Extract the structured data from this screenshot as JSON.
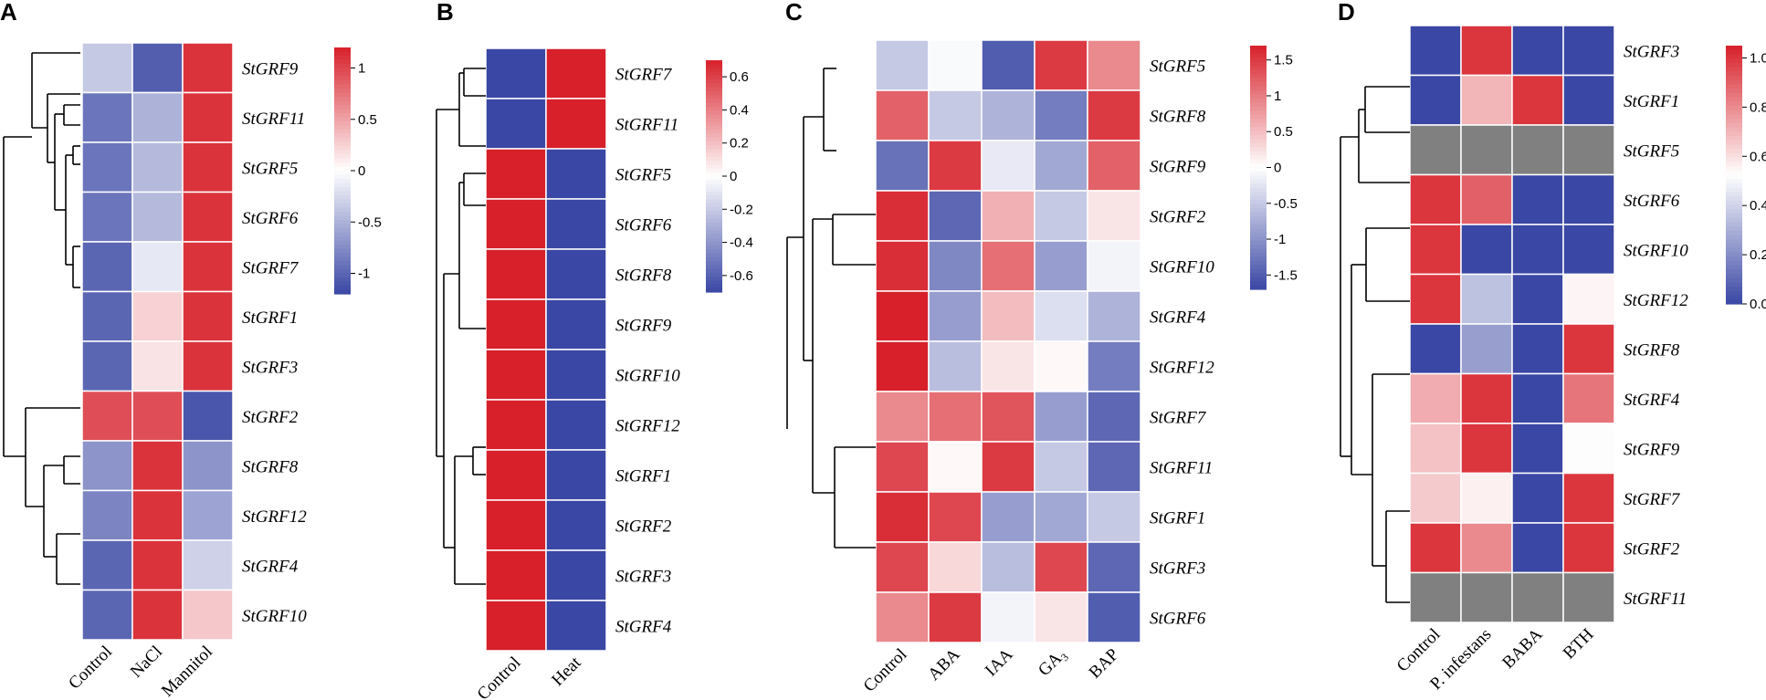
{
  "colors": {
    "low": "#3a47a4",
    "mid": "#ffffff",
    "high": "#d7202a",
    "missing": "#808080"
  },
  "chart_data": [
    {
      "type": "heatmap",
      "panel": "A",
      "title": "A",
      "columns": [
        "Control",
        "NaCl",
        "Mannitol"
      ],
      "rows": [
        "StGRF9",
        "StGRF11",
        "StGRF5",
        "StGRF6",
        "StGRF7",
        "StGRF1",
        "StGRF3",
        "StGRF2",
        "StGRF8",
        "StGRF12",
        "StGRF4",
        "StGRF10"
      ],
      "values": [
        [
          -0.35,
          -1.05,
          1.1
        ],
        [
          -0.9,
          -0.5,
          1.1
        ],
        [
          -0.9,
          -0.45,
          1.1
        ],
        [
          -0.9,
          -0.45,
          1.1
        ],
        [
          -1.0,
          -0.15,
          1.1
        ],
        [
          -1.0,
          0.25,
          1.1
        ],
        [
          -1.0,
          0.15,
          1.1
        ],
        [
          0.95,
          0.95,
          -1.1
        ],
        [
          -0.7,
          1.1,
          -0.7
        ],
        [
          -0.8,
          1.1,
          -0.6
        ],
        [
          -1.0,
          1.1,
          -0.3
        ],
        [
          -1.0,
          1.1,
          0.3
        ]
      ],
      "scale": {
        "min": -1.2,
        "max": 1.2
      },
      "colorbar_ticks": [
        "1",
        "0.5",
        "0",
        "-0.5",
        "-1"
      ],
      "colorbar_tick_values": [
        1,
        0.5,
        0,
        -0.5,
        -1
      ]
    },
    {
      "type": "heatmap",
      "panel": "B",
      "title": "B",
      "columns": [
        "Control",
        "Heat"
      ],
      "rows": [
        "StGRF7",
        "StGRF11",
        "StGRF5",
        "StGRF6",
        "StGRF8",
        "StGRF9",
        "StGRF10",
        "StGRF12",
        "StGRF1",
        "StGRF2",
        "StGRF3",
        "StGRF4"
      ],
      "values": [
        [
          -0.7,
          0.7
        ],
        [
          -0.7,
          0.7
        ],
        [
          0.7,
          -0.7
        ],
        [
          0.7,
          -0.7
        ],
        [
          0.7,
          -0.7
        ],
        [
          0.7,
          -0.7
        ],
        [
          0.7,
          -0.7
        ],
        [
          0.7,
          -0.7
        ],
        [
          0.7,
          -0.7
        ],
        [
          0.7,
          -0.7
        ],
        [
          0.7,
          -0.7
        ],
        [
          0.7,
          -0.7
        ]
      ],
      "scale": {
        "min": -0.7,
        "max": 0.7
      },
      "colorbar_ticks": [
        "0.6",
        "0.4",
        "0.2",
        "0",
        "-0.2",
        "-0.4",
        "-0.6"
      ],
      "colorbar_tick_values": [
        0.6,
        0.4,
        0.2,
        0,
        -0.2,
        -0.4,
        -0.6
      ]
    },
    {
      "type": "heatmap",
      "panel": "C",
      "title": "C",
      "columns": [
        "Control",
        "ABA",
        "IAA",
        "GA3",
        "BAP"
      ],
      "column_subscripts": [
        "",
        "",
        "",
        "3",
        ""
      ],
      "column_base": [
        "Control",
        "ABA",
        "IAA",
        "GA",
        "BAP"
      ],
      "rows": [
        "StGRF5",
        "StGRF8",
        "StGRF9",
        "StGRF2",
        "StGRF10",
        "StGRF4",
        "StGRF12",
        "StGRF7",
        "StGRF11",
        "StGRF1",
        "StGRF3",
        "StGRF6"
      ],
      "values": [
        [
          -0.5,
          -0.05,
          -1.5,
          1.5,
          0.9
        ],
        [
          1.2,
          -0.5,
          -0.7,
          -1.2,
          1.5
        ],
        [
          -1.3,
          1.5,
          -0.2,
          -0.8,
          1.2
        ],
        [
          1.6,
          -1.4,
          0.6,
          -0.5,
          0.2
        ],
        [
          1.6,
          -1.1,
          1.1,
          -0.9,
          -0.1
        ],
        [
          1.7,
          -0.9,
          0.5,
          -0.3,
          -0.7
        ],
        [
          1.7,
          -0.6,
          0.2,
          0.05,
          -1.2
        ],
        [
          0.9,
          1.1,
          1.3,
          -0.9,
          -1.4
        ],
        [
          1.4,
          0.05,
          1.5,
          -0.5,
          -1.4
        ],
        [
          1.6,
          1.4,
          -0.9,
          -0.8,
          -0.5
        ],
        [
          1.4,
          0.3,
          -0.6,
          1.4,
          -1.4
        ],
        [
          0.9,
          1.5,
          -0.1,
          0.2,
          -1.5
        ]
      ],
      "scale": {
        "min": -1.7,
        "max": 1.7
      },
      "colorbar_ticks": [
        "1.5",
        "1",
        "0.5",
        "0",
        "-0.5",
        "-1",
        "-1.5"
      ],
      "colorbar_tick_values": [
        1.5,
        1,
        0.5,
        0,
        -0.5,
        -1,
        -1.5
      ]
    },
    {
      "type": "heatmap",
      "panel": "D",
      "title": "D",
      "columns": [
        "Control",
        "P. infestans",
        "BABA",
        "BTH"
      ],
      "rows": [
        "StGRF3",
        "StGRF1",
        "StGRF5",
        "StGRF6",
        "StGRF10",
        "StGRF12",
        "StGRF8",
        "StGRF4",
        "StGRF9",
        "StGRF7",
        "StGRF2",
        "StGRF11"
      ],
      "values": [
        [
          0.0,
          1.0,
          0.0,
          0.0
        ],
        [
          0.0,
          0.7,
          1.0,
          0.0
        ],
        [
          null,
          null,
          null,
          null
        ],
        [
          1.0,
          0.9,
          0.0,
          0.0
        ],
        [
          1.0,
          0.0,
          0.0,
          0.0
        ],
        [
          1.0,
          0.35,
          0.0,
          0.55
        ],
        [
          0.0,
          0.25,
          0.0,
          1.0
        ],
        [
          0.72,
          1.0,
          0.0,
          0.85
        ],
        [
          0.67,
          1.0,
          0.0,
          0.52
        ],
        [
          0.65,
          0.56,
          0.0,
          1.0
        ],
        [
          1.0,
          0.8,
          0.0,
          1.0
        ],
        [
          null,
          null,
          null,
          null
        ]
      ],
      "scale": {
        "min": 0,
        "max": 1.05
      },
      "colorbar_ticks": [
        "1.0",
        "0.8",
        "0.6",
        "0.4",
        "0.2",
        "0.0"
      ],
      "colorbar_tick_values": [
        1.0,
        0.8,
        0.6,
        0.4,
        0.2,
        0.0
      ]
    }
  ]
}
